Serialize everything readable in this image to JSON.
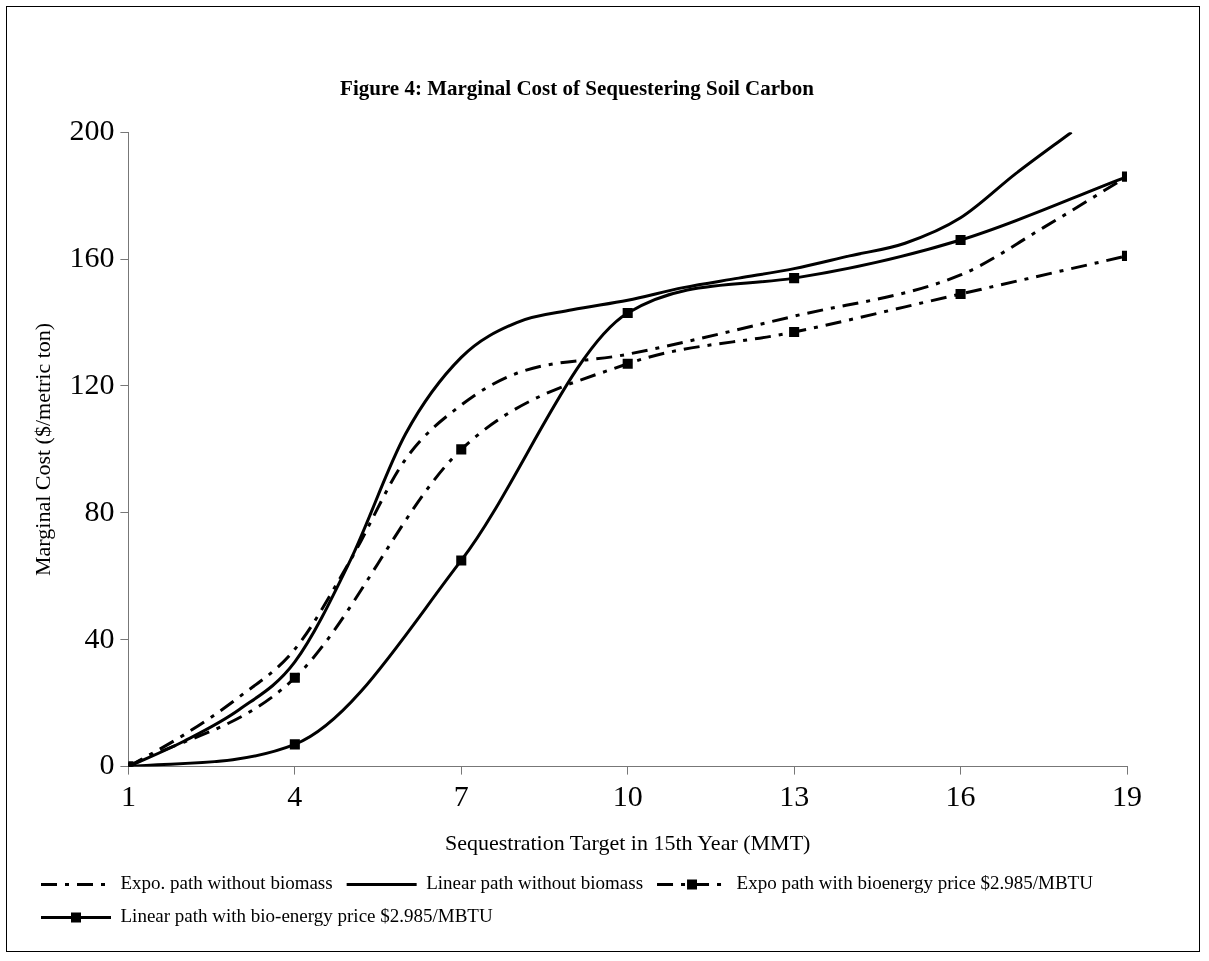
{
  "chart_data": {
    "type": "line",
    "title": "Figure 4: Marginal Cost of Sequestering Soil Carbon",
    "xlabel": "Sequestration Target in 15th Year (MMT)",
    "ylabel": "Marginal Cost ($/metric ton)",
    "xlim": [
      1,
      19
    ],
    "xticks": [
      1,
      4,
      7,
      10,
      13,
      16,
      19
    ],
    "ylim": [
      0,
      200
    ],
    "yticks": [
      0,
      40,
      80,
      120,
      160,
      200
    ],
    "grid": false,
    "legend": "bottom",
    "series": [
      {
        "name": "Expo. path without biomass",
        "color": "#000000",
        "line_style": "dashed",
        "marker": "none",
        "x": [
          1,
          2,
          3,
          4,
          5,
          6,
          7,
          8,
          10,
          13,
          16,
          17.5,
          19
        ],
        "values": [
          0,
          10,
          22,
          37,
          65,
          97,
          114,
          124,
          130,
          142,
          155,
          170,
          186
        ]
      },
      {
        "name": "Linear path without biomass",
        "color": "#000000",
        "line_style": "solid",
        "marker": "none",
        "x": [
          1,
          2,
          3,
          4,
          5,
          6,
          7,
          8,
          9,
          10,
          11,
          12,
          13,
          14,
          15,
          16,
          17,
          18
        ],
        "values": [
          0,
          8,
          18,
          33,
          65,
          105,
          129,
          140,
          144,
          147,
          151,
          154,
          157,
          161,
          165,
          173,
          187,
          200
        ]
      },
      {
        "name": "Expo path with bioenergy price $2.985/MBTU",
        "color": "#000000",
        "line_style": "dashed",
        "marker": "square",
        "x": [
          1,
          4,
          7,
          10,
          13,
          16,
          19
        ],
        "values": [
          0,
          28,
          100,
          127,
          137,
          149,
          161
        ]
      },
      {
        "name": "Linear path with bio-energy price $2.985/MBTU",
        "color": "#000000",
        "line_style": "solid",
        "marker": "square",
        "x": [
          1,
          4,
          7,
          10,
          13,
          16,
          19
        ],
        "values": [
          0,
          7,
          65,
          143,
          154,
          166,
          186
        ]
      }
    ]
  }
}
